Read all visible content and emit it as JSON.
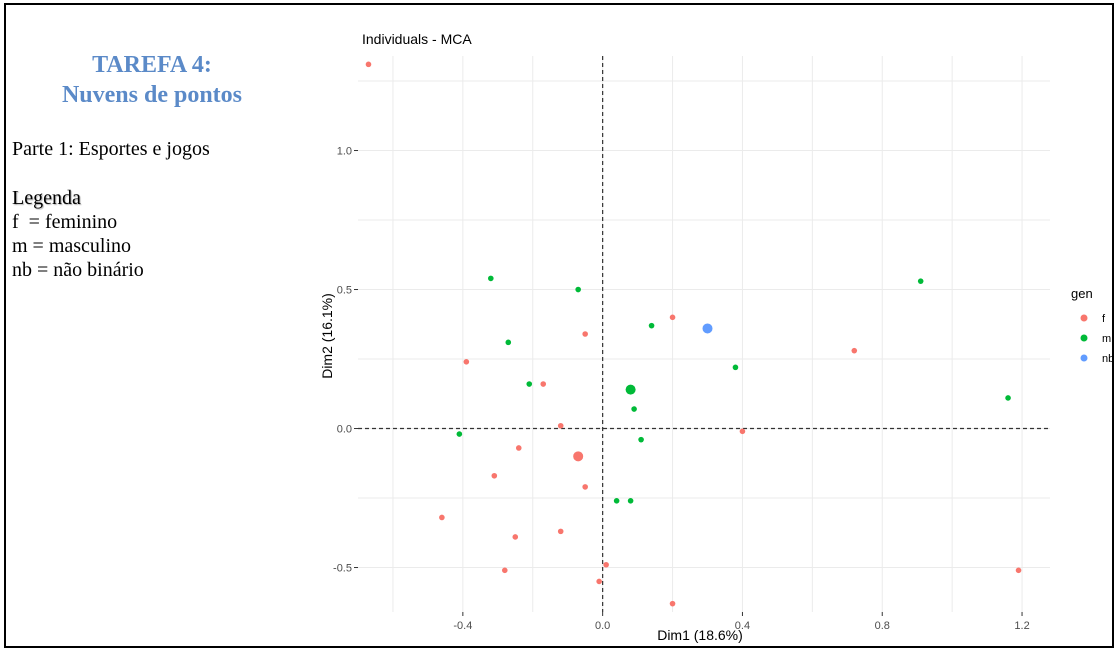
{
  "panel": {
    "title_line1": "TAREFA 4:",
    "title_line2": "Nuvens de pontos",
    "subtitle": "Parte 1: Esportes e jogos",
    "legend_heading": "Legenda",
    "legend_lines": [
      "f  = feminino",
      "m = masculino",
      "nb = não binário"
    ]
  },
  "colors": {
    "title": "#5b8ac8",
    "f": "#f8766d",
    "m": "#00ba38",
    "nb": "#619cff",
    "grid": "#ebebeb",
    "refline": "#333333"
  },
  "chart_data": {
    "type": "scatter",
    "title": "Individuals - MCA",
    "xlabel": "Dim1 (18.6%)",
    "ylabel": "Dim2 (16.1%)",
    "xlim": [
      -0.7,
      1.28
    ],
    "ylim": [
      -0.66,
      1.34
    ],
    "xticks": [
      -0.4,
      0.0,
      0.4,
      0.8,
      1.2
    ],
    "xtick_labels": [
      "-0.4",
      "0.0",
      "0.4",
      "0.8",
      "1.2"
    ],
    "yticks": [
      -0.5,
      0.0,
      0.5,
      1.0
    ],
    "ytick_labels": [
      "-0.5",
      "0.0",
      "0.5",
      "1.0"
    ],
    "grid": true,
    "reference_lines": {
      "x": 0,
      "y": 0,
      "style": "dashed"
    },
    "legend": {
      "title": "gen",
      "placement": "right",
      "entries": [
        "f",
        "m",
        "nb"
      ]
    },
    "series": [
      {
        "name": "f",
        "color": "#f8766d",
        "points": [
          [
            -0.67,
            1.31
          ],
          [
            -0.39,
            0.24
          ],
          [
            -0.05,
            0.34
          ],
          [
            0.2,
            0.4
          ],
          [
            0.72,
            0.28
          ],
          [
            -0.17,
            0.16
          ],
          [
            -0.12,
            0.01
          ],
          [
            0.4,
            -0.01
          ],
          [
            -0.24,
            -0.07
          ],
          [
            -0.31,
            -0.17
          ],
          [
            -0.05,
            -0.21
          ],
          [
            -0.46,
            -0.32
          ],
          [
            -0.12,
            -0.37
          ],
          [
            -0.25,
            -0.39
          ],
          [
            0.01,
            -0.49
          ],
          [
            -0.28,
            -0.51
          ],
          [
            -0.01,
            -0.55
          ],
          [
            0.2,
            -0.63
          ],
          [
            1.19,
            -0.51
          ]
        ],
        "centroid": [
          -0.07,
          -0.1
        ]
      },
      {
        "name": "m",
        "color": "#00ba38",
        "points": [
          [
            -0.32,
            0.54
          ],
          [
            -0.07,
            0.5
          ],
          [
            0.91,
            0.53
          ],
          [
            -0.27,
            0.31
          ],
          [
            0.14,
            0.37
          ],
          [
            0.38,
            0.22
          ],
          [
            -0.21,
            0.16
          ],
          [
            0.09,
            0.07
          ],
          [
            1.16,
            0.11
          ],
          [
            -0.41,
            -0.02
          ],
          [
            0.11,
            -0.04
          ],
          [
            0.04,
            -0.26
          ],
          [
            0.08,
            -0.26
          ]
        ],
        "centroid": [
          0.08,
          0.14
        ]
      },
      {
        "name": "nb",
        "color": "#619cff",
        "points": [],
        "centroid": [
          0.3,
          0.36
        ]
      }
    ]
  }
}
